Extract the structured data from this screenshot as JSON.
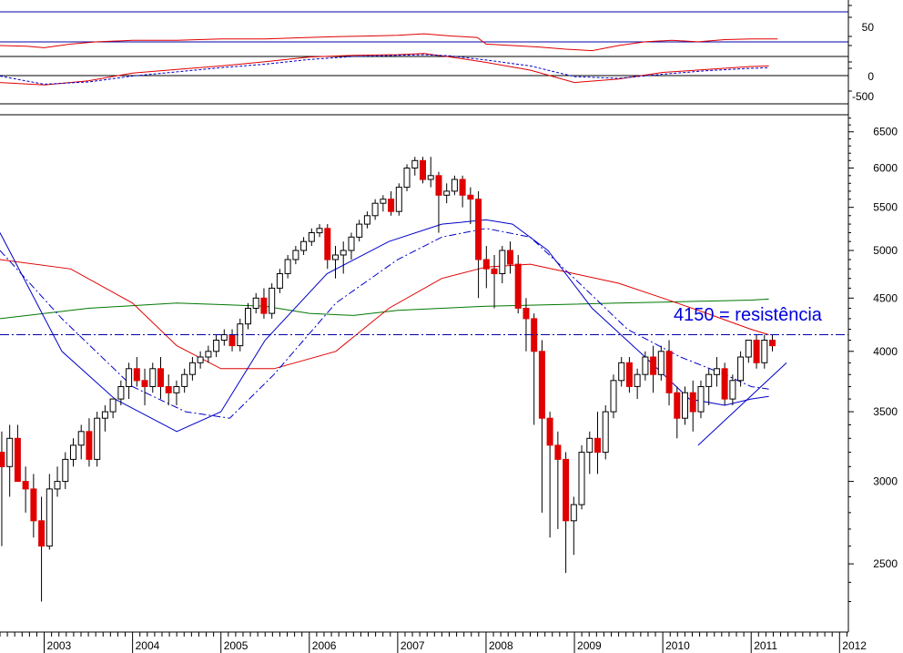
{
  "chart_data": {
    "type": "candlestick",
    "grid": false,
    "colors": {
      "up_fill": "#ffffff",
      "down_fill": "#e00000",
      "wick": "#000000",
      "ma_blue": "#0000cc",
      "ma_red": "#e00000",
      "ma_green": "#007700",
      "resistance": "#0000aa",
      "annotation": "#0000dd",
      "frame": "#000000"
    },
    "x_axis": {
      "start": 2002.5,
      "end": 2012.1,
      "year_labels": [
        "2003",
        "2004",
        "2005",
        "2006",
        "2007",
        "2008",
        "2009",
        "2010",
        "2011",
        "2012"
      ]
    },
    "price_panel": {
      "scale": "log",
      "ylim": [
        2150,
        6750
      ],
      "ticks": [
        "6500",
        "6000",
        "5500",
        "5000",
        "4500",
        "4000",
        "3500",
        "3000",
        "2500"
      ],
      "tick_values": [
        6500,
        6000,
        5500,
        5000,
        4500,
        4000,
        3500,
        3000,
        2500
      ],
      "resistance_level": 4150,
      "annotation": "4150 = resistência",
      "candles": [
        [
          3200,
          3350,
          2600,
          3100
        ],
        [
          3100,
          3400,
          2900,
          3300
        ],
        [
          3300,
          3400,
          3000,
          3000
        ],
        [
          3000,
          3100,
          2800,
          2950
        ],
        [
          2950,
          3050,
          2650,
          2750
        ],
        [
          2750,
          2900,
          2300,
          2600
        ],
        [
          2600,
          3050,
          2580,
          2950
        ],
        [
          2950,
          3100,
          2900,
          3000
        ],
        [
          3000,
          3200,
          2950,
          3150
        ],
        [
          3150,
          3300,
          3100,
          3250
        ],
        [
          3250,
          3400,
          3150,
          3350
        ],
        [
          3350,
          3450,
          3100,
          3150
        ],
        [
          3150,
          3500,
          3100,
          3450
        ],
        [
          3450,
          3550,
          3350,
          3500
        ],
        [
          3500,
          3600,
          3450,
          3600
        ],
        [
          3600,
          3750,
          3550,
          3700
        ],
        [
          3700,
          3900,
          3600,
          3850
        ],
        [
          3850,
          3950,
          3700,
          3750
        ],
        [
          3750,
          3850,
          3550,
          3700
        ],
        [
          3700,
          3900,
          3650,
          3850
        ],
        [
          3850,
          3950,
          3600,
          3700
        ],
        [
          3700,
          3800,
          3550,
          3650
        ],
        [
          3650,
          3750,
          3550,
          3700
        ],
        [
          3700,
          3850,
          3650,
          3800
        ],
        [
          3800,
          3950,
          3750,
          3900
        ],
        [
          3900,
          4000,
          3850,
          3950
        ],
        [
          3950,
          4050,
          3900,
          4000
        ],
        [
          4000,
          4150,
          3950,
          4100
        ],
        [
          4100,
          4200,
          4050,
          4150
        ],
        [
          4150,
          4200,
          4000,
          4050
        ],
        [
          4050,
          4300,
          4000,
          4250
        ],
        [
          4250,
          4450,
          4200,
          4400
        ],
        [
          4400,
          4550,
          4350,
          4500
        ],
        [
          4500,
          4600,
          4300,
          4350
        ],
        [
          4350,
          4650,
          4300,
          4600
        ],
        [
          4600,
          4800,
          4550,
          4750
        ],
        [
          4750,
          4950,
          4700,
          4900
        ],
        [
          4900,
          5050,
          4850,
          5000
        ],
        [
          5000,
          5150,
          4950,
          5100
        ],
        [
          5100,
          5250,
          5050,
          5200
        ],
        [
          5200,
          5300,
          5150,
          5250
        ],
        [
          5250,
          5300,
          4800,
          4900
        ],
        [
          4900,
          5050,
          4700,
          4950
        ],
        [
          4950,
          5100,
          4750,
          5000
        ],
        [
          5000,
          5200,
          4900,
          5150
        ],
        [
          5150,
          5350,
          5100,
          5300
        ],
        [
          5300,
          5450,
          5250,
          5400
        ],
        [
          5400,
          5600,
          5350,
          5550
        ],
        [
          5550,
          5650,
          5450,
          5600
        ],
        [
          5600,
          5700,
          5400,
          5450
        ],
        [
          5450,
          5800,
          5400,
          5750
        ],
        [
          5750,
          6050,
          5700,
          6000
        ],
        [
          6000,
          6150,
          5900,
          6100
        ],
        [
          6100,
          6150,
          5800,
          5850
        ],
        [
          5850,
          6150,
          5750,
          5900
        ],
        [
          5900,
          5950,
          5200,
          5650
        ],
        [
          5650,
          5800,
          5550,
          5700
        ],
        [
          5700,
          5900,
          5650,
          5850
        ],
        [
          5850,
          5900,
          5500,
          5650
        ],
        [
          5650,
          5750,
          5300,
          5600
        ],
        [
          5600,
          5700,
          4500,
          4900
        ],
        [
          4900,
          5050,
          4600,
          4800
        ],
        [
          4800,
          4950,
          4400,
          4750
        ],
        [
          4750,
          5050,
          4650,
          5000
        ],
        [
          5000,
          5100,
          4750,
          4850
        ],
        [
          4850,
          4950,
          4350,
          4400
        ],
        [
          4400,
          4500,
          4000,
          4300
        ],
        [
          4300,
          4350,
          3400,
          4000
        ],
        [
          4000,
          4100,
          2800,
          3450
        ],
        [
          3450,
          3500,
          2650,
          3250
        ],
        [
          3250,
          3350,
          2700,
          3150
        ],
        [
          3150,
          3200,
          2450,
          2750
        ],
        [
          2750,
          2900,
          2550,
          2850
        ],
        [
          2850,
          3250,
          2820,
          3200
        ],
        [
          3200,
          3350,
          3050,
          3300
        ],
        [
          3300,
          3500,
          3050,
          3200
        ],
        [
          3200,
          3550,
          3150,
          3500
        ],
        [
          3500,
          3800,
          3450,
          3750
        ],
        [
          3750,
          3950,
          3700,
          3900
        ],
        [
          3900,
          3950,
          3650,
          3700
        ],
        [
          3700,
          3850,
          3600,
          3800
        ],
        [
          3800,
          4000,
          3750,
          3950
        ],
        [
          3950,
          4050,
          3650,
          3800
        ],
        [
          3800,
          4050,
          3750,
          4000
        ],
        [
          4000,
          4100,
          3550,
          3650
        ],
        [
          3650,
          3700,
          3300,
          3450
        ],
        [
          3450,
          3700,
          3400,
          3650
        ],
        [
          3650,
          3750,
          3350,
          3500
        ],
        [
          3500,
          3750,
          3450,
          3700
        ],
        [
          3700,
          3850,
          3550,
          3800
        ],
        [
          3800,
          3950,
          3700,
          3850
        ],
        [
          3850,
          3900,
          3550,
          3600
        ],
        [
          3600,
          3800,
          3550,
          3750
        ],
        [
          3750,
          4000,
          3700,
          3950
        ],
        [
          3950,
          4100,
          3900,
          4100
        ],
        [
          4100,
          4150,
          3850,
          3900
        ],
        [
          3900,
          4150,
          3850,
          4100
        ],
        [
          4100,
          4150,
          4000,
          4050
        ]
      ],
      "ma_blue": [
        [
          2002.5,
          5200
        ],
        [
          2003.2,
          4000
        ],
        [
          2003.8,
          3600
        ],
        [
          2004.5,
          3350
        ],
        [
          2005.0,
          3500
        ],
        [
          2005.5,
          4100
        ],
        [
          2006.2,
          4750
        ],
        [
          2006.9,
          5100
        ],
        [
          2007.5,
          5300
        ],
        [
          2008.0,
          5350
        ],
        [
          2008.3,
          5300
        ],
        [
          2008.7,
          5000
        ],
        [
          2009.2,
          4400
        ],
        [
          2009.8,
          3950
        ],
        [
          2010.3,
          3600
        ],
        [
          2010.7,
          3550
        ],
        [
          2011.0,
          3600
        ],
        [
          2011.2,
          3620
        ]
      ],
      "ma_blue_dashed": [
        [
          2002.5,
          5000
        ],
        [
          2003.2,
          4300
        ],
        [
          2004.0,
          3700
        ],
        [
          2004.6,
          3500
        ],
        [
          2005.1,
          3450
        ],
        [
          2005.6,
          3800
        ],
        [
          2006.3,
          4450
        ],
        [
          2007.0,
          4900
        ],
        [
          2007.5,
          5150
        ],
        [
          2008.0,
          5250
        ],
        [
          2008.5,
          5150
        ],
        [
          2009.0,
          4700
        ],
        [
          2009.6,
          4200
        ],
        [
          2010.2,
          3950
        ],
        [
          2010.7,
          3800
        ],
        [
          2011.0,
          3700
        ],
        [
          2011.2,
          3680
        ]
      ],
      "ma_red": [
        [
          2002.5,
          4900
        ],
        [
          2003.3,
          4800
        ],
        [
          2004.0,
          4450
        ],
        [
          2004.5,
          4050
        ],
        [
          2005.0,
          3850
        ],
        [
          2005.6,
          3850
        ],
        [
          2006.3,
          4000
        ],
        [
          2006.9,
          4400
        ],
        [
          2007.5,
          4700
        ],
        [
          2008.0,
          4820
        ],
        [
          2008.5,
          4850
        ],
        [
          2009.0,
          4750
        ],
        [
          2009.5,
          4650
        ],
        [
          2010.0,
          4500
        ],
        [
          2010.5,
          4350
        ],
        [
          2011.0,
          4200
        ],
        [
          2011.2,
          4150
        ]
      ],
      "ma_green": [
        [
          2002.5,
          4300
        ],
        [
          2003.5,
          4400
        ],
        [
          2004.5,
          4450
        ],
        [
          2005.5,
          4420
        ],
        [
          2006.0,
          4350
        ],
        [
          2006.5,
          4330
        ],
        [
          2007.0,
          4380
        ],
        [
          2007.5,
          4400
        ],
        [
          2008.0,
          4420
        ],
        [
          2008.5,
          4430
        ],
        [
          2009.0,
          4440
        ],
        [
          2009.5,
          4450
        ],
        [
          2010.0,
          4460
        ],
        [
          2010.5,
          4470
        ],
        [
          2011.0,
          4480
        ],
        [
          2011.2,
          4490
        ]
      ],
      "trendline": [
        [
          2010.4,
          3250
        ],
        [
          2011.4,
          3900
        ]
      ]
    },
    "rsi_panel": {
      "ylim": [
        28,
        95
      ],
      "tick_labels": [
        "50"
      ],
      "tick_values": [
        50
      ],
      "levels": [
        70,
        30
      ],
      "series": [
        [
          2002.5,
          33
        ],
        [
          2002.8,
          32
        ],
        [
          2003.0,
          30
        ],
        [
          2003.3,
          35
        ],
        [
          2003.6,
          38
        ],
        [
          2004.0,
          40
        ],
        [
          2004.5,
          40
        ],
        [
          2005.0,
          42
        ],
        [
          2005.5,
          42
        ],
        [
          2006.0,
          44
        ],
        [
          2006.3,
          45
        ],
        [
          2006.7,
          46
        ],
        [
          2007.0,
          47
        ],
        [
          2007.3,
          49
        ],
        [
          2007.6,
          46
        ],
        [
          2007.9,
          44
        ],
        [
          2008.0,
          35
        ],
        [
          2008.3,
          33
        ],
        [
          2008.6,
          31
        ],
        [
          2008.9,
          28
        ],
        [
          2009.2,
          26
        ],
        [
          2009.5,
          33
        ],
        [
          2009.8,
          38
        ],
        [
          2010.1,
          40
        ],
        [
          2010.4,
          38
        ],
        [
          2010.7,
          41
        ],
        [
          2011.0,
          42
        ],
        [
          2011.3,
          42
        ]
      ]
    },
    "macd_panel": {
      "ylim": [
        -620,
        180
      ],
      "tick_labels": [
        "0",
        "-500"
      ],
      "tick_values": [
        0,
        -500
      ],
      "zero_line": 0,
      "macd": [
        [
          2002.5,
          -260
        ],
        [
          2003.0,
          -300
        ],
        [
          2003.5,
          -230
        ],
        [
          2004.0,
          -100
        ],
        [
          2004.5,
          -40
        ],
        [
          2005.0,
          20
        ],
        [
          2005.5,
          90
        ],
        [
          2006.0,
          170
        ],
        [
          2006.5,
          200
        ],
        [
          2007.0,
          210
        ],
        [
          2007.3,
          230
        ],
        [
          2007.6,
          170
        ],
        [
          2008.0,
          80
        ],
        [
          2008.5,
          -50
        ],
        [
          2009.0,
          -260
        ],
        [
          2009.5,
          -200
        ],
        [
          2010.0,
          -90
        ],
        [
          2010.5,
          -40
        ],
        [
          2011.0,
          10
        ],
        [
          2011.2,
          20
        ]
      ],
      "signal": [
        [
          2002.5,
          -150
        ],
        [
          2003.0,
          -290
        ],
        [
          2003.5,
          -250
        ],
        [
          2004.0,
          -150
        ],
        [
          2004.5,
          -80
        ],
        [
          2005.0,
          -10
        ],
        [
          2005.5,
          50
        ],
        [
          2006.0,
          130
        ],
        [
          2006.5,
          180
        ],
        [
          2007.0,
          200
        ],
        [
          2007.3,
          210
        ],
        [
          2007.6,
          190
        ],
        [
          2008.0,
          120
        ],
        [
          2008.5,
          20
        ],
        [
          2009.0,
          -160
        ],
        [
          2009.5,
          -190
        ],
        [
          2010.0,
          -120
        ],
        [
          2010.5,
          -60
        ],
        [
          2011.0,
          -20
        ],
        [
          2011.2,
          -10
        ]
      ]
    }
  }
}
